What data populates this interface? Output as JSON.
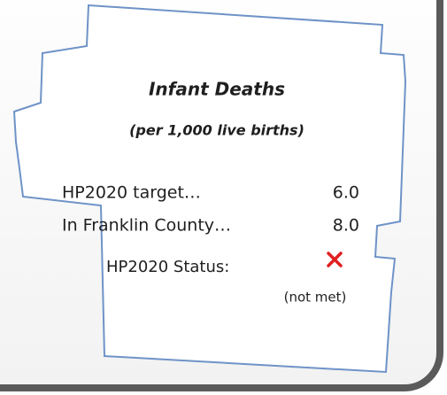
{
  "title": "Infant Deaths",
  "subtitle": "(per 1,000 live births)",
  "rows": [
    {
      "label": "HP2020 target…",
      "value": "6.0"
    },
    {
      "label": "In Franklin County…",
      "value": "8.0"
    }
  ],
  "status": {
    "label": "HP2020 Status:",
    "note": "(not met)"
  }
}
